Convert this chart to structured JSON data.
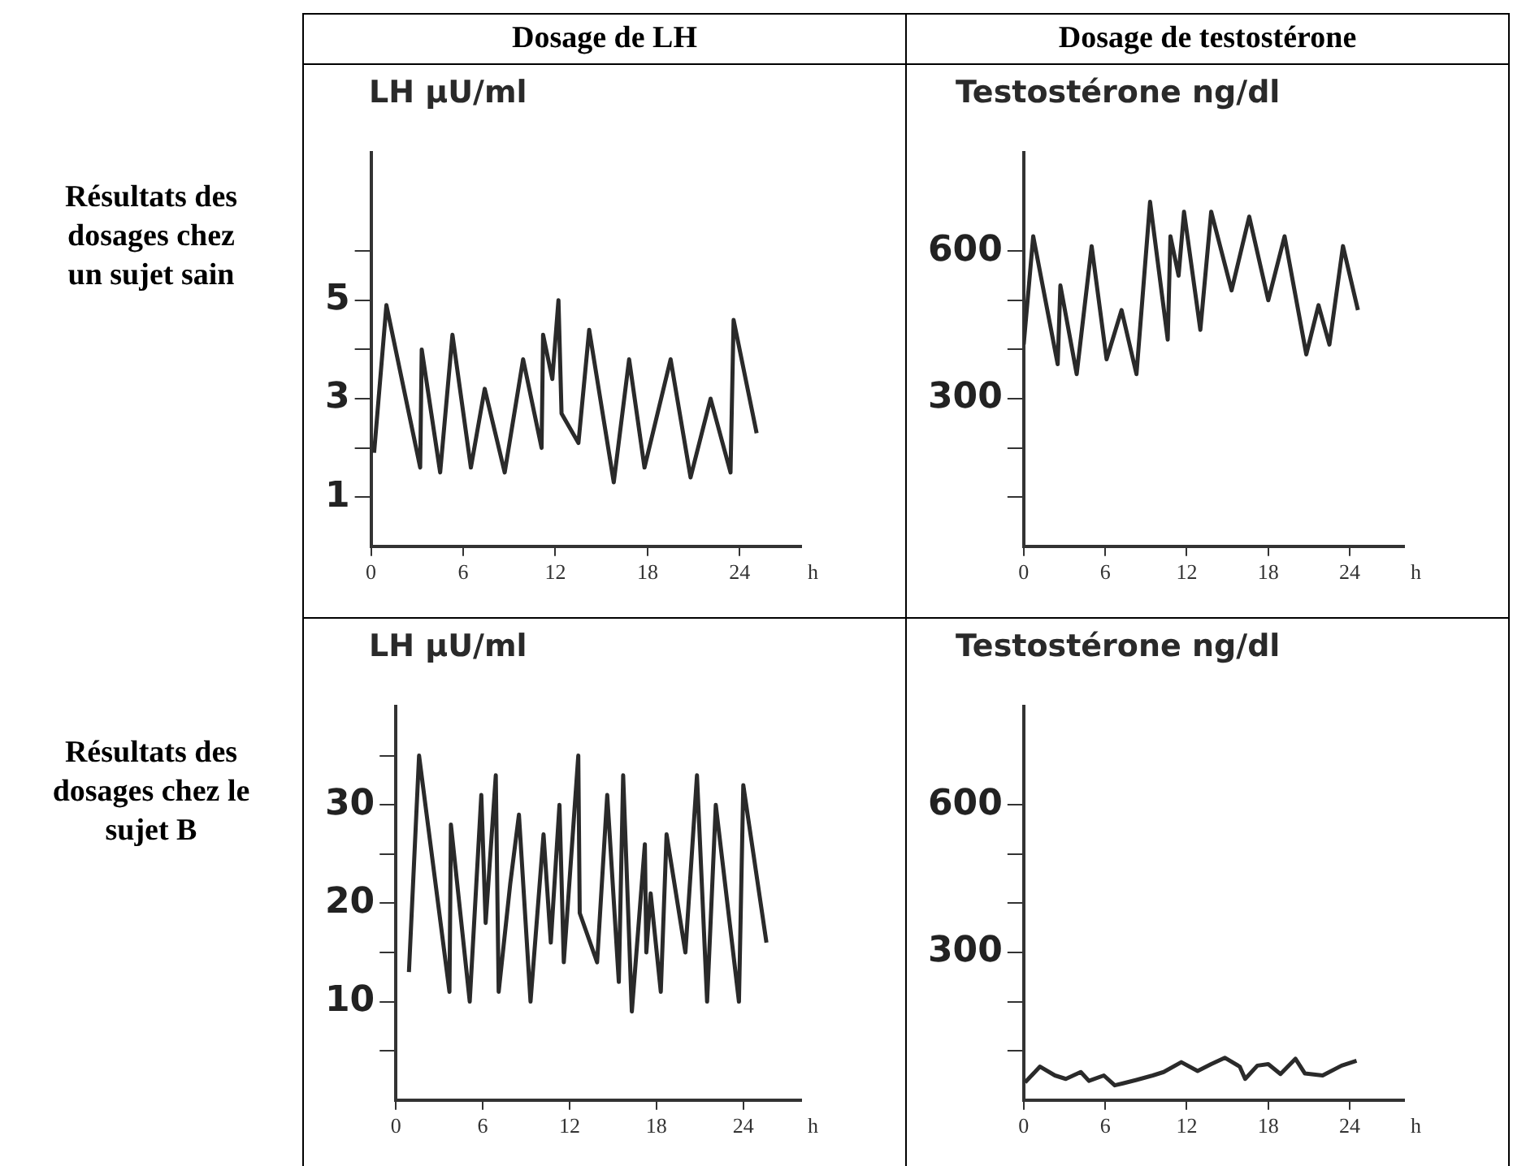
{
  "chart_data": [
    {
      "type": "line",
      "title": "Dosage de LH",
      "annotations": [
        "Résultats des dosages chez un sujet sain"
      ],
      "ylabel": "LH µU/ml",
      "xlabel": "h",
      "grid": false,
      "legend": false,
      "marker": "none",
      "x": [
        0.2,
        1.0,
        3.2,
        3.3,
        4.5,
        5.3,
        6.5,
        7.4,
        8.7,
        9.9,
        11.1,
        11.2,
        11.8,
        12.2,
        12.4,
        13.5,
        14.2,
        15.8,
        16.8,
        17.8,
        19.5,
        20.8,
        22.1,
        23.4,
        23.6,
        25.1
      ],
      "series": [
        {
          "color": "#2a2a2a",
          "values": [
            1.9,
            4.9,
            1.6,
            4.0,
            1.5,
            4.3,
            1.6,
            3.2,
            1.5,
            3.8,
            2.0,
            4.3,
            3.4,
            5.0,
            2.7,
            2.1,
            4.4,
            1.3,
            3.8,
            1.6,
            3.8,
            1.4,
            3.0,
            1.5,
            4.6,
            2.3
          ]
        }
      ],
      "xlim": [
        0,
        28
      ],
      "xticks": [
        0,
        6,
        12,
        18,
        24
      ],
      "ylim": [
        0,
        8
      ],
      "yticks": [
        1,
        {
          "value": 2,
          "label": null
        },
        3,
        {
          "value": 4,
          "label": null
        },
        5,
        {
          "value": 6,
          "label": null
        }
      ]
    },
    {
      "type": "line",
      "title": "Dosage de testostérone",
      "ylabel": "Testostérone ng/dl",
      "xlabel": "h",
      "grid": false,
      "legend": false,
      "marker": "none",
      "x": [
        0,
        0.7,
        2.5,
        2.7,
        3.9,
        5.0,
        6.1,
        7.2,
        8.3,
        9.3,
        10.6,
        10.8,
        11.4,
        11.8,
        13.0,
        13.8,
        15.3,
        16.6,
        18.0,
        19.2,
        20.8,
        21.7,
        22.5,
        23.5,
        24.6
      ],
      "series": [
        {
          "color": "#2a2a2a",
          "values": [
            410,
            630,
            370,
            530,
            350,
            610,
            380,
            480,
            350,
            700,
            420,
            630,
            550,
            680,
            440,
            680,
            520,
            670,
            500,
            630,
            390,
            490,
            410,
            610,
            480
          ]
        }
      ],
      "xlim": [
        0,
        28
      ],
      "xticks": [
        0,
        6,
        12,
        18,
        24
      ],
      "ylim": [
        0,
        800
      ],
      "yticks": [
        {
          "value": 100,
          "label": null
        },
        {
          "value": 200,
          "label": null
        },
        300,
        {
          "value": 400,
          "label": null
        },
        {
          "value": 500,
          "label": null
        },
        600
      ]
    },
    {
      "type": "line",
      "annotations": [
        "Résultats des dosages chez le sujet B"
      ],
      "ylabel": "LH µU/ml",
      "xlabel": "h",
      "grid": false,
      "legend": false,
      "marker": "none",
      "x": [
        0.9,
        1.6,
        3.7,
        3.8,
        5.1,
        5.9,
        6.2,
        6.9,
        7.1,
        7.9,
        8.5,
        9.3,
        10.2,
        10.7,
        11.3,
        11.6,
        12.6,
        12.7,
        13.9,
        14.6,
        15.4,
        15.7,
        16.3,
        17.2,
        17.3,
        17.6,
        18.3,
        18.7,
        20.0,
        20.8,
        21.5,
        22.1,
        23.7,
        24.0,
        25.6
      ],
      "series": [
        {
          "color": "#2a2a2a",
          "values": [
            13,
            35,
            11,
            28,
            10,
            31,
            18,
            33,
            11,
            22,
            29,
            10,
            27,
            16,
            30,
            14,
            35,
            19,
            14,
            31,
            12,
            33,
            9,
            26,
            15,
            21,
            11,
            27,
            15,
            33,
            10,
            30,
            10,
            32,
            16
          ]
        }
      ],
      "xlim": [
        0,
        28
      ],
      "xticks": [
        0,
        6,
        12,
        18,
        24
      ],
      "ylim": [
        0,
        40
      ],
      "yticks": [
        {
          "value": 5,
          "label": null
        },
        10,
        {
          "value": 15,
          "label": null
        },
        20,
        {
          "value": 25,
          "label": null
        },
        30,
        {
          "value": 35,
          "label": null
        }
      ]
    },
    {
      "type": "line",
      "ylabel": "Testostérone ng/dl",
      "xlabel": "h",
      "grid": false,
      "legend": false,
      "marker": "none",
      "x": [
        0.1,
        1.2,
        2.3,
        3.1,
        4.2,
        4.8,
        5.9,
        6.7,
        7.3,
        8.3,
        9.5,
        10.3,
        11.6,
        12.8,
        13.8,
        14.8,
        15.9,
        16.3,
        17.2,
        18.0,
        18.9,
        20.0,
        20.7,
        22.0,
        23.4,
        24.5
      ],
      "series": [
        {
          "color": "#2a2a2a",
          "values": [
            36,
            68,
            50,
            43,
            57,
            39,
            50,
            30,
            34,
            41,
            50,
            57,
            77,
            59,
            73,
            86,
            68,
            43,
            70,
            73,
            53,
            84,
            54,
            50,
            70,
            80
          ]
        }
      ],
      "xlim": [
        0,
        28
      ],
      "xticks": [
        0,
        6,
        12,
        18,
        24
      ],
      "ylim": [
        0,
        800
      ],
      "yticks": [
        {
          "value": 100,
          "label": null
        },
        {
          "value": 200,
          "label": null
        },
        300,
        {
          "value": 400,
          "label": null
        },
        {
          "value": 500,
          "label": null
        },
        600
      ]
    }
  ]
}
